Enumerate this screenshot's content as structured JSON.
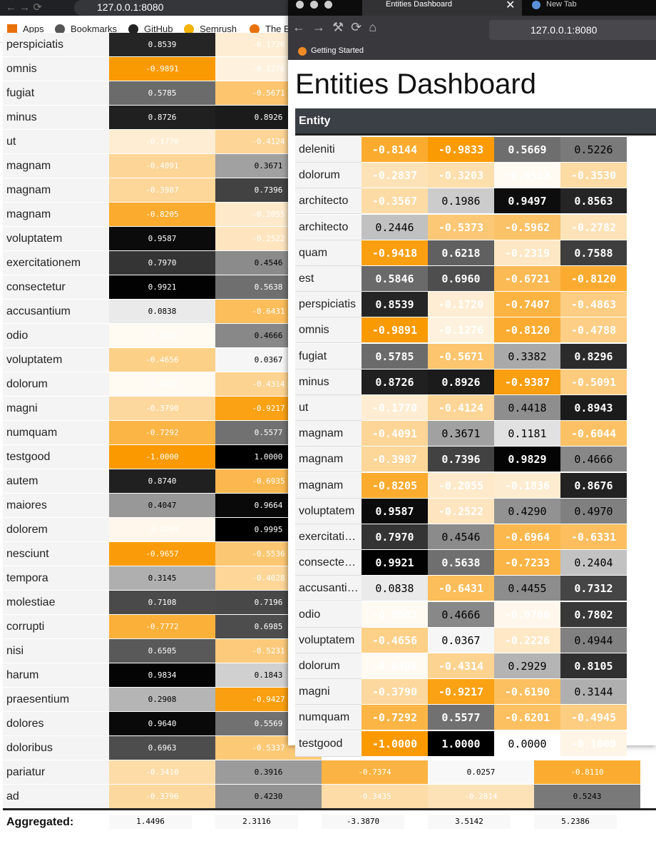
{
  "back_browser": {
    "url": "127.0.0.1:8080",
    "bookmarks": [
      "Apps",
      "Bookmarks",
      "GitHub",
      "Semrush",
      "The E"
    ]
  },
  "back_table": {
    "rows": [
      [
        "perspiciatis",
        "0.8539",
        "-0.1720"
      ],
      [
        "omnis",
        "-0.9891",
        "-0.1276"
      ],
      [
        "fugiat",
        "0.5785",
        "-0.5671"
      ],
      [
        "minus",
        "0.8726",
        "0.8926"
      ],
      [
        "ut",
        "-0.1770",
        "-0.4124"
      ],
      [
        "magnam",
        "-0.4091",
        "0.3671"
      ],
      [
        "magnam",
        "-0.3987",
        "0.7396"
      ],
      [
        "magnam",
        "-0.8205",
        "-0.2055"
      ],
      [
        "voluptatem",
        "0.9587",
        "-0.2522"
      ],
      [
        "exercitationem",
        "0.7970",
        "0.4546"
      ],
      [
        "consectetur",
        "0.9921",
        "0.5638"
      ],
      [
        "accusantium",
        "0.0838",
        "-0.6431"
      ],
      [
        "odio",
        "-0.0507",
        "0.4666"
      ],
      [
        "voluptatem",
        "-0.4656",
        "0.0367"
      ],
      [
        "dolorum",
        "-0.0498",
        "-0.4314"
      ],
      [
        "magni",
        "-0.3790",
        "-0.9217"
      ],
      [
        "numquam",
        "-0.7292",
        "0.5577"
      ],
      [
        "testgood",
        "-1.0000",
        "1.0000"
      ],
      [
        "autem",
        "0.8740",
        "-0.6935"
      ],
      [
        "maiores",
        "0.4047",
        "0.9664"
      ],
      [
        "dolorem",
        "-0.0764",
        "0.9995"
      ],
      [
        "nesciunt",
        "-0.9657",
        "-0.5536"
      ],
      [
        "tempora",
        "0.3145",
        "-0.4028"
      ],
      [
        "molestiae",
        "0.7108",
        "0.7196"
      ],
      [
        "corrupti",
        "-0.7772",
        "0.6985"
      ],
      [
        "nisi",
        "0.6505",
        "-0.5231"
      ],
      [
        "harum",
        "0.9834",
        "0.1843"
      ],
      [
        "praesentium",
        "0.2908",
        "-0.9427"
      ],
      [
        "dolores",
        "0.9640",
        "0.5569"
      ],
      [
        "doloribus",
        "0.6963",
        "-0.5337"
      ],
      [
        "pariatur",
        "-0.3410",
        "0.3916",
        "-0.7374",
        "0.0257",
        "-0.8110"
      ],
      [
        "ad",
        "-0.3796",
        "0.4230",
        "-0.3435",
        "-0.2814",
        "0.5243"
      ]
    ],
    "footer": [
      "Aggregated:",
      "1.4496",
      "2.3116",
      "-3.3870",
      "3.5142",
      "5.2386"
    ]
  },
  "front_browser": {
    "tabs": [
      "Entities Dashboard",
      "New Tab"
    ],
    "url": "127.0.0.1:8080",
    "bookmarks": [
      "Getting Started"
    ]
  },
  "dashboard": {
    "title": "Entities Dashboard",
    "header": "Entity",
    "rows": [
      [
        "deleniti",
        "-0.8144",
        "-0.9833",
        "0.5669",
        "0.5226"
      ],
      [
        "dolorum",
        "-0.2837",
        "-0.3203",
        "-0.0513",
        "-0.3530"
      ],
      [
        "architecto",
        "-0.3567",
        "0.1986",
        "0.9497",
        "0.8563"
      ],
      [
        "architecto",
        "0.2446",
        "-0.5373",
        "-0.5962",
        "-0.2782"
      ],
      [
        "quam",
        "-0.9418",
        "0.6218",
        "-0.2319",
        "0.7588"
      ],
      [
        "est",
        "0.5846",
        "0.6960",
        "-0.6721",
        "-0.8120"
      ],
      [
        "perspiciatis",
        "0.8539",
        "-0.1720",
        "-0.7407",
        "-0.4863"
      ],
      [
        "omnis",
        "-0.9891",
        "-0.1276",
        "-0.8120",
        "-0.4788"
      ],
      [
        "fugiat",
        "0.5785",
        "-0.5671",
        "0.3382",
        "0.8296"
      ],
      [
        "minus",
        "0.8726",
        "0.8926",
        "-0.9387",
        "-0.5091"
      ],
      [
        "ut",
        "-0.1770",
        "-0.4124",
        "0.4418",
        "0.8943"
      ],
      [
        "magnam",
        "-0.4091",
        "0.3671",
        "0.1181",
        "-0.6044"
      ],
      [
        "magnam",
        "-0.3987",
        "0.7396",
        "0.9829",
        "0.4666"
      ],
      [
        "magnam",
        "-0.8205",
        "-0.2055",
        "-0.1836",
        "0.8676"
      ],
      [
        "voluptatem",
        "0.9587",
        "-0.2522",
        "0.4290",
        "0.4970"
      ],
      [
        "exercitati…",
        "0.7970",
        "0.4546",
        "-0.6964",
        "-0.6331"
      ],
      [
        "consecte…",
        "0.9921",
        "0.5638",
        "-0.7233",
        "0.2404"
      ],
      [
        "accusanti…",
        "0.0838",
        "-0.6431",
        "0.4455",
        "0.7312"
      ],
      [
        "odio",
        "-0.0507",
        "0.4666",
        "-0.0760",
        "0.7802"
      ],
      [
        "voluptatem",
        "-0.4656",
        "0.0367",
        "-0.2226",
        "0.4944"
      ],
      [
        "dolorum",
        "-0.0498",
        "-0.4314",
        "0.2929",
        "0.8105"
      ],
      [
        "magni",
        "-0.3790",
        "-0.9217",
        "-0.6190",
        "0.3144"
      ],
      [
        "numquam",
        "-0.7292",
        "0.5577",
        "-0.6201",
        "-0.4945"
      ],
      [
        "testgood",
        "-1.0000",
        "1.0000",
        "0.0000",
        "-0.1000"
      ]
    ]
  }
}
